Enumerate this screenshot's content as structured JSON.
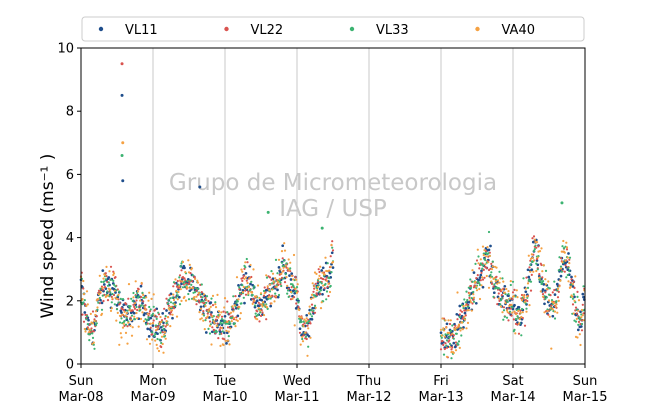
{
  "chart_data": {
    "type": "scatter",
    "ylabel": "Wind speed (ms⁻¹ )",
    "ylim": [
      0,
      10
    ],
    "y_ticks": [
      "0",
      "2",
      "4",
      "6",
      "8",
      "10"
    ],
    "x_ticks": [
      {
        "day": "Sun",
        "date": "Mar-08"
      },
      {
        "day": "Mon",
        "date": "Mar-09"
      },
      {
        "day": "Tue",
        "date": "Mar-10"
      },
      {
        "day": "Wed",
        "date": "Mar-11"
      },
      {
        "day": "Thu",
        "date": "Mar-12"
      },
      {
        "day": "Fri",
        "date": "Mar-13"
      },
      {
        "day": "Sat",
        "date": "Mar-14"
      },
      {
        "day": "Sun",
        "date": "Mar-15"
      }
    ],
    "xlim": [
      "Mar-08",
      "Mar-15"
    ],
    "grid": "vertical",
    "legend_position": "top",
    "watermark": [
      "Grupo de Micrometeorologia",
      "IAG / USP"
    ],
    "series": [
      {
        "name": "VL11",
        "color": "#1f4e8c"
      },
      {
        "name": "VL22",
        "color": "#d9534f"
      },
      {
        "name": "VL33",
        "color": "#3cb371"
      },
      {
        "name": "VA40",
        "color": "#f5a142"
      }
    ],
    "gap": {
      "from": "Mar-11 12:00",
      "to": "Mar-13 00:00"
    },
    "profile": [
      {
        "t": 0.0,
        "v": 2.4
      },
      {
        "t": 0.1,
        "v": 1.2
      },
      {
        "t": 0.18,
        "v": 1.0
      },
      {
        "t": 0.25,
        "v": 2.1
      },
      {
        "t": 0.35,
        "v": 2.6
      },
      {
        "t": 0.45,
        "v": 2.4
      },
      {
        "t": 0.52,
        "v": 2.0
      },
      {
        "t": 0.58,
        "v": 1.6
      },
      {
        "t": 0.65,
        "v": 1.5
      },
      {
        "t": 0.8,
        "v": 2.0
      },
      {
        "t": 0.95,
        "v": 1.4
      },
      {
        "t": 1.05,
        "v": 1.3
      },
      {
        "t": 1.12,
        "v": 0.9
      },
      {
        "t": 1.2,
        "v": 1.6
      },
      {
        "t": 1.32,
        "v": 2.2
      },
      {
        "t": 1.42,
        "v": 2.8
      },
      {
        "t": 1.52,
        "v": 2.5
      },
      {
        "t": 1.65,
        "v": 2.0
      },
      {
        "t": 1.78,
        "v": 1.5
      },
      {
        "t": 1.9,
        "v": 1.4
      },
      {
        "t": 2.02,
        "v": 1.2
      },
      {
        "t": 2.15,
        "v": 1.8
      },
      {
        "t": 2.3,
        "v": 2.8
      },
      {
        "t": 2.4,
        "v": 2.0
      },
      {
        "t": 2.5,
        "v": 1.8
      },
      {
        "t": 2.6,
        "v": 2.2
      },
      {
        "t": 2.7,
        "v": 2.4
      },
      {
        "t": 2.8,
        "v": 3.2
      },
      {
        "t": 2.9,
        "v": 2.5
      },
      {
        "t": 3.0,
        "v": 2.3
      },
      {
        "t": 3.05,
        "v": 1.2
      },
      {
        "t": 3.15,
        "v": 1.0
      },
      {
        "t": 3.22,
        "v": 2.0
      },
      {
        "t": 3.3,
        "v": 2.6
      },
      {
        "t": 3.4,
        "v": 2.5
      },
      {
        "t": 3.48,
        "v": 3.2
      },
      {
        "t": 3.5,
        "v": 3.4
      },
      {
        "t": 5.0,
        "v": 0.8
      },
      {
        "t": 5.15,
        "v": 0.7
      },
      {
        "t": 5.3,
        "v": 1.5
      },
      {
        "t": 5.42,
        "v": 2.2
      },
      {
        "t": 5.55,
        "v": 2.9
      },
      {
        "t": 5.65,
        "v": 3.4
      },
      {
        "t": 5.75,
        "v": 2.5
      },
      {
        "t": 5.88,
        "v": 2.0
      },
      {
        "t": 6.0,
        "v": 1.9
      },
      {
        "t": 6.1,
        "v": 1.6
      },
      {
        "t": 6.18,
        "v": 2.0
      },
      {
        "t": 6.3,
        "v": 3.8
      },
      {
        "t": 6.4,
        "v": 2.6
      },
      {
        "t": 6.5,
        "v": 1.8
      },
      {
        "t": 6.6,
        "v": 2.0
      },
      {
        "t": 6.7,
        "v": 3.6
      },
      {
        "t": 6.78,
        "v": 3.0
      },
      {
        "t": 6.85,
        "v": 2.0
      },
      {
        "t": 6.95,
        "v": 1.2
      },
      {
        "t": 7.0,
        "v": 2.4
      }
    ],
    "peaks": [
      {
        "t": 0.57,
        "series": "VL22",
        "v": 9.5
      },
      {
        "t": 0.57,
        "series": "VL11",
        "v": 8.5
      },
      {
        "t": 0.58,
        "series": "VA40",
        "v": 7.0
      },
      {
        "t": 0.57,
        "series": "VL33",
        "v": 6.6
      },
      {
        "t": 0.58,
        "series": "VL11",
        "v": 5.8
      },
      {
        "t": 1.65,
        "series": "VL11",
        "v": 5.6
      },
      {
        "t": 2.6,
        "series": "VL33",
        "v": 4.8
      },
      {
        "t": 3.35,
        "series": "VL33",
        "v": 4.3
      },
      {
        "t": 6.68,
        "series": "VL33",
        "v": 5.1
      }
    ]
  }
}
